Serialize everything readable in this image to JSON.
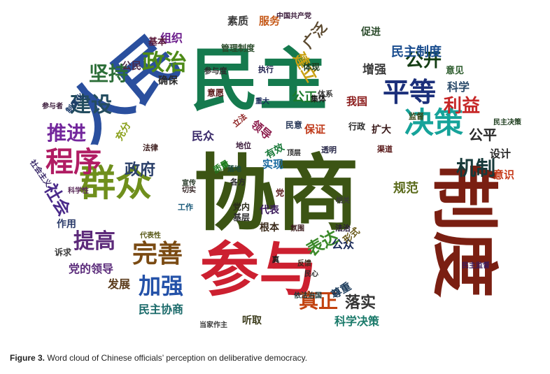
{
  "caption": {
    "label": "Figure 3.",
    "text": "Word cloud of Chinese officials’ perception on deliberative democracy."
  },
  "words": [
    {
      "t": "协商",
      "c": "#3c5414"
    },
    {
      "t": "民主",
      "c": "#157a4e"
    },
    {
      "t": "制度",
      "c": "#7a1f12"
    },
    {
      "t": "人民",
      "c": "#2a4f9e"
    },
    {
      "t": "参与",
      "c": "#cc2030"
    },
    {
      "t": "群众",
      "c": "#6f8f1c"
    },
    {
      "t": "决策",
      "c": "#16a39a"
    },
    {
      "t": "平等",
      "c": "#1b2f7a"
    },
    {
      "t": "程序",
      "c": "#b01c63"
    },
    {
      "t": "完善",
      "c": "#7a4a12"
    },
    {
      "t": "政治",
      "c": "#4e8a18"
    },
    {
      "t": "建设",
      "c": "#244d60"
    },
    {
      "t": "坚持",
      "c": "#2c6e38"
    },
    {
      "t": "推进",
      "c": "#73279c"
    },
    {
      "t": "提高",
      "c": "#5c2a7a"
    },
    {
      "t": "加强",
      "c": "#2351a8"
    },
    {
      "t": "真正",
      "c": "#c2420f"
    },
    {
      "t": "利益",
      "c": "#c62626"
    },
    {
      "t": "公开",
      "c": "#143d14"
    },
    {
      "t": "机制",
      "c": "#173a3a"
    },
    {
      "t": "社会",
      "c": "#4a2a8a"
    },
    {
      "t": "政府",
      "c": "#2a3f6a"
    },
    {
      "t": "表达",
      "c": "#3c8a2a"
    },
    {
      "t": "落实",
      "c": "#333333"
    },
    {
      "t": "公平",
      "c": "#2a2a2a"
    },
    {
      "t": "建立",
      "c": "#c9a012"
    },
    {
      "t": "广泛",
      "c": "#5c4a30"
    },
    {
      "t": "民主制度",
      "c": "#1a4d8f"
    },
    {
      "t": "公正",
      "c": "#1a7a2a"
    },
    {
      "t": "增强",
      "c": "#3a3a3a"
    },
    {
      "t": "科学",
      "c": "#2a4a6a"
    },
    {
      "t": "规范",
      "c": "#5a6a1a"
    },
    {
      "t": "民主协商",
      "c": "#1a6a6a"
    },
    {
      "t": "党的领导",
      "c": "#5a2a7a"
    },
    {
      "t": "发展",
      "c": "#5a3a1a"
    },
    {
      "t": "意识",
      "c": "#c63a1a"
    },
    {
      "t": "设计",
      "c": "#2a2a2a"
    },
    {
      "t": "民众",
      "c": "#3a2a6a"
    },
    {
      "t": "领导",
      "c": "#8a1a4a"
    },
    {
      "t": "公众",
      "c": "#1a2a5a"
    },
    {
      "t": "科学决策",
      "c": "#1a7a6a"
    },
    {
      "t": "我国",
      "c": "#8a1a1a"
    },
    {
      "t": "组织",
      "c": "#6a1a8a"
    },
    {
      "t": "素质",
      "c": "#3a3a3a"
    },
    {
      "t": "服务",
      "c": "#c65a1a"
    },
    {
      "t": "基本",
      "c": "#5a1a3a"
    },
    {
      "t": "确保",
      "c": "#2a2a2a"
    },
    {
      "t": "公民",
      "c": "#4a2a4a"
    },
    {
      "t": "促进",
      "c": "#2a4a2a"
    },
    {
      "t": "意见",
      "c": "#2a5a2a"
    },
    {
      "t": "作用",
      "c": "#2a3a6a"
    },
    {
      "t": "实现",
      "c": "#1a6aa0"
    },
    {
      "t": "代表",
      "c": "#3a1a5a"
    },
    {
      "t": "根本",
      "c": "#3a2a1a"
    },
    {
      "t": "听取",
      "c": "#3a3a1a"
    },
    {
      "t": "尊重",
      "c": "#1a3a5a"
    },
    {
      "t": "有效",
      "c": "#1a7a3a"
    },
    {
      "t": "保证",
      "c": "#c03a1a"
    },
    {
      "t": "扩大",
      "c": "#3a1a1a"
    },
    {
      "t": "行政",
      "c": "#2a2a2a"
    },
    {
      "t": "形式",
      "c": "#6a5a1a"
    },
    {
      "t": "充分",
      "c": "#8aa01a"
    },
    {
      "t": "执行",
      "c": "#1a1a4a"
    },
    {
      "t": "体现",
      "c": "#1a3a1a"
    },
    {
      "t": "民意",
      "c": "#2a3a5a"
    },
    {
      "t": "法律",
      "c": "#3a1a1a"
    },
    {
      "t": "立法",
      "c": "#8a1a1a"
    },
    {
      "t": "诉求",
      "c": "#3a3a3a"
    },
    {
      "t": "工作",
      "c": "#1a5a7a"
    },
    {
      "t": "党内",
      "c": "#2a2a1a"
    },
    {
      "t": "基层",
      "c": "#2a2a2a"
    },
    {
      "t": "渠道",
      "c": "#5a1a1a"
    },
    {
      "t": "透明",
      "c": "#2a2a4a"
    },
    {
      "t": "顶层",
      "c": "#2a2a2a"
    },
    {
      "t": "监督",
      "c": "#3a4a1a"
    },
    {
      "t": "民主决策",
      "c": "#1a3a1a"
    },
    {
      "t": "民主监督",
      "c": "#3a1a5a"
    },
    {
      "t": "依法治国",
      "c": "#1a3a3a"
    },
    {
      "t": "当家作主",
      "c": "#3a3a3a"
    },
    {
      "t": "中国共产党",
      "c": "#3a1a3a"
    },
    {
      "t": "管理制度",
      "c": "#2a4a2a"
    },
    {
      "t": "参与度",
      "c": "#2a2a2a"
    },
    {
      "t": "意愿",
      "c": "#5a1a1a"
    },
    {
      "t": "制度化",
      "c": "#1a3a6a"
    },
    {
      "t": "参与者",
      "c": "#3a1a3a"
    },
    {
      "t": "社会主义",
      "c": "#3a2a6a"
    },
    {
      "t": "科学性",
      "c": "#5a2a5a"
    },
    {
      "t": "代表性",
      "c": "#5a5a1a"
    },
    {
      "t": "宣传",
      "c": "#2a3a2a"
    },
    {
      "t": "切实",
      "c": "#3a2a2a"
    },
    {
      "t": "各方",
      "c": "#2a2a2a"
    },
    {
      "t": "质量",
      "c": "#1a7a1a"
    },
    {
      "t": "地位",
      "c": "#3a1a3a"
    },
    {
      "t": "重大",
      "c": "#1a2a5a"
    },
    {
      "t": "体系",
      "c": "#3a3a3a"
    },
    {
      "t": "集体",
      "c": "#1a1a1a"
    },
    {
      "t": "落地",
      "c": "#1a4a3a"
    },
    {
      "t": "相关",
      "c": "#3a3a3a"
    },
    {
      "t": "法治",
      "c": "#2a1a3a"
    },
    {
      "t": "反馈",
      "c": "#3a2a1a"
    },
    {
      "t": "民心",
      "c": "#2a2a2a"
    },
    {
      "t": "氛围",
      "c": "#3a1a1a"
    },
    {
      "t": "党",
      "c": "#5a1a1a"
    },
    {
      "t": "真",
      "c": "#1a1a1a"
    }
  ]
}
